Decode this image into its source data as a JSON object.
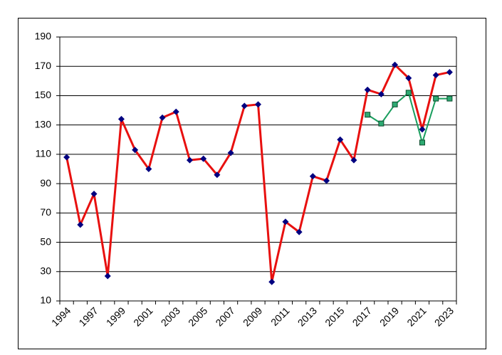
{
  "chart_data": {
    "type": "line",
    "categories": [
      "1994",
      null,
      "1997",
      null,
      "1999",
      null,
      "2001",
      null,
      "2003",
      null,
      "2005",
      null,
      "2007",
      null,
      "2009",
      null,
      "2011",
      null,
      "2013",
      null,
      "2015",
      null,
      "2017",
      null,
      "2019",
      null,
      "2021",
      null,
      "2023"
    ],
    "series": [
      {
        "color": "#e8100f",
        "marker_color": "#000080",
        "marker": "diamond",
        "values": [
          108,
          62,
          83,
          27,
          134,
          113,
          100,
          135,
          139,
          106,
          107,
          96,
          111,
          143,
          144,
          23,
          64,
          57,
          95,
          92,
          120,
          106,
          154,
          151,
          171,
          162,
          127,
          164,
          166
        ]
      },
      {
        "color": "#1a9e5e",
        "marker_color": "#2eaa72",
        "marker": "square",
        "values": [
          null,
          null,
          null,
          null,
          null,
          null,
          null,
          null,
          null,
          null,
          null,
          null,
          null,
          null,
          null,
          null,
          null,
          null,
          null,
          null,
          null,
          null,
          137,
          131,
          144,
          152,
          118,
          148,
          148
        ]
      }
    ],
    "ylim": [
      10,
      190
    ],
    "yticks": [
      10,
      30,
      50,
      70,
      90,
      110,
      130,
      150,
      170,
      190
    ],
    "grid": true
  }
}
